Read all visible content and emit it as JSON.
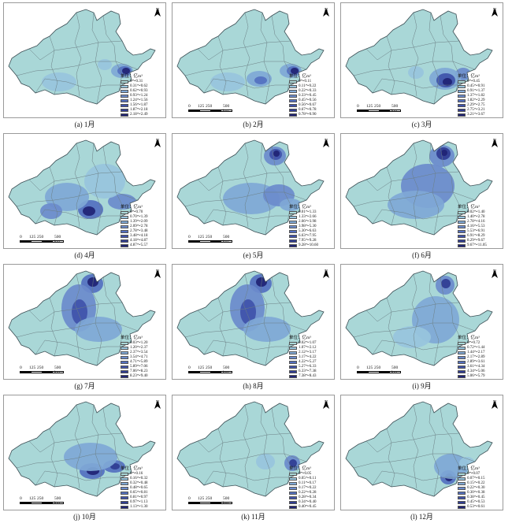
{
  "unit_label": "单位：亿m³",
  "north_label": "N",
  "scale_bar": {
    "ticks": [
      "0",
      "125",
      "250",
      "500 km"
    ]
  },
  "palette": [
    "#a9d7d7",
    "#98c4dd",
    "#7fa8d6",
    "#6b8bcc",
    "#5470c0",
    "#3f52aa",
    "#2f3c92",
    "#1f2374"
  ],
  "panels": [
    {
      "caption": "(a) 1月",
      "show_north": true,
      "show_scale": false,
      "legend": [
        "0～0.31",
        "0.31～0.62",
        "0.62～0.93",
        "0.93～1.24",
        "1.24～1.56",
        "1.56～1.87",
        "1.87～2.18",
        "2.18～2.49"
      ]
    },
    {
      "caption": "(b) 2月",
      "show_north": true,
      "show_scale": true,
      "legend": [
        "0～0.11",
        "0.11～0.22",
        "0.22～0.33",
        "0.33～0.45",
        "0.45～0.56",
        "0.56～0.67",
        "0.67～0.78",
        "0.78～0.90"
      ]
    },
    {
      "caption": "(c) 3月",
      "show_north": true,
      "show_scale": true,
      "legend": [
        "0～0.45",
        "0.45～0.91",
        "0.91～1.37",
        "1.37～1.82",
        "1.82～2.29",
        "2.29～2.75",
        "2.75～3.21",
        "3.21～3.67"
      ]
    },
    {
      "caption": "(d) 4月",
      "show_north": true,
      "show_scale": true,
      "legend": [
        "0～0.70",
        "0.70～1.39",
        "1.39～2.09",
        "2.09～2.78",
        "2.78～3.48",
        "3.48～4.18",
        "4.18～4.87",
        "4.87～5.57"
      ]
    },
    {
      "caption": "(e) 5月",
      "show_north": true,
      "show_scale": true,
      "legend": [
        "0.01～1.33",
        "1.33～2.66",
        "2.66～3.98",
        "3.98～5.30",
        "5.30～6.63",
        "6.63～7.95",
        "7.95～9.28",
        "9.28～10.60"
      ]
    },
    {
      "caption": "(f) 6月",
      "show_north": true,
      "show_scale": false,
      "legend": [
        "0.02～1.40",
        "1.40～2.78",
        "2.78～4.16",
        "4.16～5.53",
        "5.53～6.91",
        "6.91～8.29",
        "8.29～9.67",
        "9.67～11.05"
      ]
    },
    {
      "caption": "(g) 7月",
      "show_north": true,
      "show_scale": true,
      "legend": [
        "0.03～1.20",
        "1.20～2.37",
        "2.37～3.54",
        "3.54～4.71",
        "4.71～5.89",
        "5.89～7.06",
        "7.06～8.23",
        "8.23～9.40"
      ]
    },
    {
      "caption": "(h) 8月",
      "show_north": true,
      "show_scale": true,
      "legend": [
        "0.02～1.07",
        "1.07～2.12",
        "2.12～3.17",
        "3.17～4.22",
        "4.22～5.27",
        "5.27～6.33",
        "6.33～7.38",
        "7.38～8.43"
      ]
    },
    {
      "caption": "(i) 9月",
      "show_north": true,
      "show_scale": true,
      "legend": [
        "0～0.72",
        "0.72～1.44",
        "1.44～2.17",
        "2.17～2.89",
        "2.89～3.61",
        "3.61～4.34",
        "4.34～5.06",
        "5.06～5.79"
      ]
    },
    {
      "caption": "(j) 10月",
      "show_north": true,
      "show_scale": true,
      "legend": [
        "0～0.16",
        "0.16～0.32",
        "0.32～0.48",
        "0.48～0.65",
        "0.65～0.81",
        "0.81～0.97",
        "0.97～1.13",
        "1.13～1.30"
      ]
    },
    {
      "caption": "(k) 11月",
      "show_north": true,
      "show_scale": true,
      "legend": [
        "0～0.05",
        "0.05～0.11",
        "0.11～0.17",
        "0.17～0.22",
        "0.22～0.28",
        "0.28～0.34",
        "0.34～0.40",
        "0.40～0.45"
      ]
    },
    {
      "caption": "(l) 12月",
      "show_north": true,
      "show_scale": false,
      "legend": [
        "0～0.07",
        "0.07～0.15",
        "0.15～0.22",
        "0.22～0.30",
        "0.30～0.38",
        "0.38～0.45",
        "0.45～0.53",
        "0.53～0.61"
      ]
    }
  ]
}
